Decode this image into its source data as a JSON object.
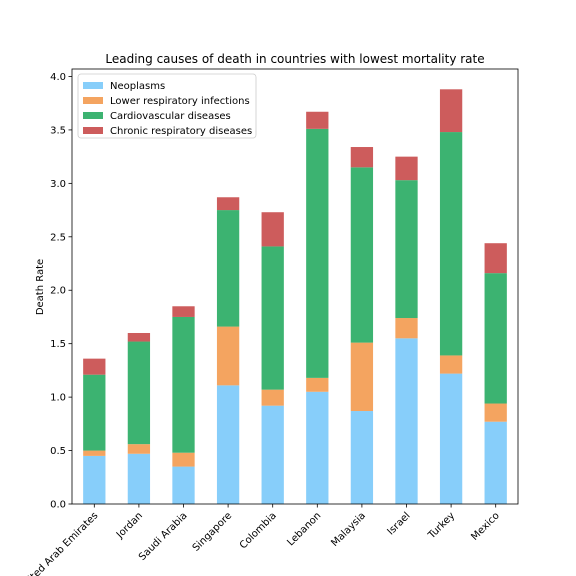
{
  "chart_data": {
    "type": "bar",
    "stacked": true,
    "title": "Leading causes of death in countries with lowest mortality rate",
    "xlabel": "",
    "ylabel": "Death Rate",
    "ylim": [
      0,
      4.07
    ],
    "yticks": [
      "0.0",
      "0.5",
      "1.0",
      "1.5",
      "2.0",
      "2.5",
      "3.0",
      "3.5",
      "4.0"
    ],
    "grid": false,
    "legend_position": "top-left",
    "categories": [
      "United Arab Emirates",
      "Jordan",
      "Saudi Arabia",
      "Singapore",
      "Colombia",
      "Lebanon",
      "Malaysia",
      "Israel",
      "Turkey",
      "Mexico"
    ],
    "series": [
      {
        "name": "Neoplasms",
        "color": "#87cefa",
        "values": [
          0.45,
          0.47,
          0.35,
          1.11,
          0.92,
          1.05,
          0.87,
          1.55,
          1.22,
          0.77
        ]
      },
      {
        "name": "Lower respiratory infections",
        "color": "#f4a460",
        "values": [
          0.05,
          0.09,
          0.13,
          0.55,
          0.15,
          0.13,
          0.64,
          0.19,
          0.17,
          0.17
        ]
      },
      {
        "name": "Cardiovascular diseases",
        "color": "#3cb371",
        "values": [
          0.71,
          0.96,
          1.27,
          1.09,
          1.34,
          2.33,
          1.64,
          1.29,
          2.09,
          1.22
        ]
      },
      {
        "name": "Chronic respiratory diseases",
        "color": "#cd5c5c",
        "values": [
          0.15,
          0.08,
          0.1,
          0.12,
          0.32,
          0.16,
          0.19,
          0.22,
          0.4,
          0.28
        ]
      }
    ]
  }
}
